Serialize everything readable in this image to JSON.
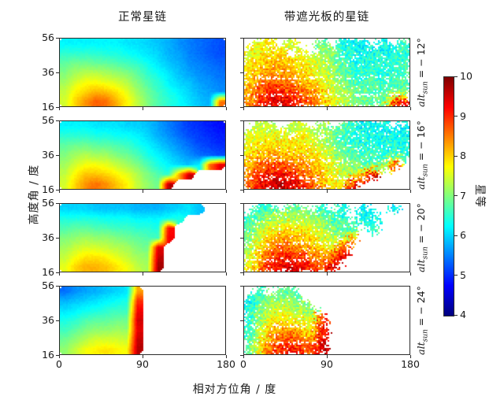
{
  "chart_data": {
    "type": "heatmap",
    "colormap": "jet",
    "value_range": [
      4,
      10
    ],
    "col_titles": [
      "正常星链",
      "带遮光板的星链"
    ],
    "row_labels": {
      "variable": "alt",
      "subscript": "sun",
      "equals": " = ",
      "values": [
        "− 12°",
        "− 16°",
        "− 20°",
        "− 24°"
      ]
    },
    "xlabel": "相对方位角 / 度",
    "ylabel": "高度角 / 度",
    "x_range": [
      0,
      180
    ],
    "x_ticks": [
      0,
      90,
      180
    ],
    "y_range": [
      16,
      56
    ],
    "y_ticks": [
      56,
      36,
      16
    ],
    "colorbar": {
      "label": "星等",
      "ticks": [
        10,
        9,
        8,
        7,
        6,
        5,
        4
      ],
      "range": [
        4,
        10
      ]
    },
    "grid_info": {
      "cols": 16,
      "rows": 7,
      "azimuth_span": [
        0,
        180
      ],
      "altitude_span_top_to_bottom": [
        56,
        16
      ],
      "units": "magnitude (星等)"
    },
    "panels": [
      {
        "id": "normal_altsun-12",
        "col": 0,
        "row": 0,
        "noise": 0.05,
        "grid": [
          [
            6.2,
            6.2,
            6.2,
            6.2,
            6.2,
            6.2,
            6.1,
            6.1,
            6.0,
            5.9,
            5.8,
            5.6,
            5.5,
            5.4,
            5.3,
            5.2
          ],
          [
            6.5,
            6.5,
            6.5,
            6.5,
            6.4,
            6.4,
            6.3,
            6.2,
            6.1,
            6.0,
            5.8,
            5.7,
            5.5,
            5.4,
            5.3,
            5.2
          ],
          [
            6.8,
            6.9,
            6.9,
            6.8,
            6.8,
            6.7,
            6.6,
            6.5,
            6.3,
            6.1,
            5.9,
            5.8,
            5.6,
            5.5,
            5.4,
            5.3
          ],
          [
            7.0,
            7.2,
            7.3,
            7.3,
            7.2,
            7.1,
            7.0,
            6.8,
            6.5,
            6.3,
            6.1,
            5.9,
            5.7,
            5.6,
            5.5,
            5.4
          ],
          [
            7.2,
            7.5,
            7.7,
            7.7,
            7.6,
            7.5,
            7.3,
            7.0,
            6.7,
            6.5,
            6.2,
            6.0,
            5.9,
            5.7,
            5.6,
            5.5
          ],
          [
            7.4,
            7.8,
            8.0,
            8.2,
            8.1,
            7.9,
            7.6,
            7.2,
            6.9,
            6.6,
            6.4,
            6.2,
            6.0,
            5.8,
            5.7,
            5.6
          ],
          [
            7.5,
            8.0,
            8.4,
            8.7,
            8.6,
            8.2,
            7.8,
            7.4,
            7.0,
            6.7,
            6.5,
            6.3,
            6.1,
            5.9,
            5.8,
            8.6
          ]
        ]
      },
      {
        "id": "visor_altsun-12",
        "col": 1,
        "row": 0,
        "noise": 0.42,
        "grid": [
          [
            null,
            7.6,
            7.8,
            null,
            7.5,
            null,
            null,
            6.9,
            null,
            6.4,
            6.3,
            6.2,
            null,
            6.3,
            null,
            6.5
          ],
          [
            7.6,
            7.8,
            8.0,
            7.9,
            null,
            7.7,
            null,
            7.2,
            7.0,
            6.6,
            6.4,
            6.3,
            6.4,
            6.3,
            6.4,
            6.5
          ],
          [
            7.8,
            8.0,
            8.1,
            8.2,
            8.0,
            7.8,
            7.6,
            7.4,
            7.0,
            6.7,
            6.5,
            6.4,
            6.5,
            6.4,
            6.5,
            6.6
          ],
          [
            7.9,
            8.2,
            8.4,
            8.3,
            8.2,
            8.0,
            7.8,
            7.6,
            7.2,
            6.9,
            6.6,
            6.5,
            6.6,
            6.5,
            6.6,
            6.7
          ],
          [
            8.0,
            8.5,
            8.7,
            8.6,
            8.5,
            8.3,
            8.0,
            7.8,
            7.4,
            7.0,
            6.8,
            6.6,
            6.7,
            6.6,
            6.7,
            6.8
          ],
          [
            8.2,
            8.8,
            9.1,
            9.1,
            8.9,
            8.7,
            8.4,
            8.0,
            7.6,
            7.2,
            7.0,
            6.8,
            6.8,
            6.7,
            6.8,
            6.9
          ],
          [
            8.4,
            9.0,
            9.3,
            9.4,
            9.2,
            9.0,
            8.6,
            8.2,
            7.8,
            7.4,
            7.1,
            6.9,
            6.9,
            6.8,
            9.0,
            9.2
          ]
        ]
      },
      {
        "id": "normal_altsun-16",
        "col": 0,
        "row": 1,
        "noise": 0.05,
        "grid": [
          [
            6.2,
            6.2,
            6.2,
            6.1,
            6.1,
            6.1,
            6.0,
            6.0,
            5.9,
            5.7,
            5.5,
            5.3,
            5.1,
            5.0,
            4.9,
            4.8
          ],
          [
            6.5,
            6.5,
            6.5,
            6.4,
            6.4,
            6.3,
            6.3,
            6.2,
            6.0,
            5.8,
            5.6,
            5.4,
            5.2,
            5.1,
            5.0,
            4.9
          ],
          [
            6.8,
            6.9,
            6.9,
            6.8,
            6.8,
            6.7,
            6.6,
            6.4,
            6.2,
            6.0,
            5.8,
            5.6,
            5.4,
            5.2,
            5.1,
            5.0
          ],
          [
            7.0,
            7.2,
            7.3,
            7.2,
            7.2,
            7.0,
            6.9,
            6.7,
            6.4,
            6.2,
            6.0,
            5.8,
            5.6,
            5.4,
            5.3,
            5.2
          ],
          [
            7.2,
            7.5,
            7.7,
            7.7,
            7.6,
            7.4,
            7.2,
            7.0,
            6.7,
            6.4,
            6.2,
            6.0,
            5.9,
            6.2,
            8.6,
            9.4
          ],
          [
            7.4,
            7.8,
            8.1,
            8.1,
            8.0,
            7.8,
            7.6,
            7.3,
            7.0,
            6.7,
            6.5,
            8.2,
            9.6,
            null,
            null,
            null
          ],
          [
            7.5,
            8.0,
            8.4,
            8.6,
            8.4,
            8.1,
            7.8,
            7.4,
            7.1,
            6.9,
            9.7,
            null,
            null,
            null,
            null,
            null
          ]
        ]
      },
      {
        "id": "visor_altsun-16",
        "col": 1,
        "row": 1,
        "noise": 0.42,
        "grid": [
          [
            null,
            7.4,
            7.2,
            null,
            7.3,
            7.5,
            null,
            7.2,
            null,
            6.8,
            6.5,
            6.3,
            6.2,
            6.4,
            null,
            6.3
          ],
          [
            7.5,
            7.6,
            7.7,
            7.6,
            null,
            7.8,
            7.4,
            null,
            7.0,
            6.6,
            6.4,
            6.3,
            6.4,
            6.3,
            6.4,
            6.2
          ],
          [
            7.7,
            7.9,
            8.0,
            7.9,
            7.8,
            7.9,
            7.7,
            7.5,
            7.1,
            6.8,
            6.6,
            6.5,
            6.5,
            6.4,
            6.5,
            6.4
          ],
          [
            7.9,
            8.2,
            8.3,
            8.2,
            8.1,
            8.0,
            7.9,
            7.7,
            7.4,
            7.0,
            6.8,
            6.6,
            6.6,
            6.5,
            6.6,
            6.5
          ],
          [
            8.1,
            8.6,
            8.8,
            8.7,
            8.6,
            8.4,
            8.1,
            7.9,
            7.6,
            7.2,
            7.0,
            6.8,
            6.8,
            6.9,
            8.8,
            null
          ],
          [
            8.4,
            9.0,
            9.2,
            9.3,
            9.1,
            8.8,
            8.5,
            8.1,
            7.8,
            7.4,
            7.2,
            8.6,
            9.5,
            null,
            null,
            null
          ],
          [
            8.6,
            9.2,
            9.5,
            9.6,
            9.4,
            9.1,
            8.7,
            8.3,
            7.9,
            7.6,
            9.6,
            null,
            null,
            null,
            null,
            null
          ]
        ]
      },
      {
        "id": "normal_altsun-20",
        "col": 0,
        "row": 2,
        "noise": 0.05,
        "grid": [
          [
            6.0,
            6.0,
            6.0,
            5.9,
            5.9,
            5.9,
            5.9,
            5.8,
            5.8,
            5.8,
            5.9,
            6.0,
            6.1,
            5.9,
            null,
            null
          ],
          [
            6.4,
            6.4,
            6.4,
            6.4,
            6.3,
            6.3,
            6.3,
            6.2,
            6.2,
            6.2,
            6.3,
            6.4,
            null,
            null,
            null,
            null
          ],
          [
            6.7,
            6.8,
            6.8,
            6.7,
            6.7,
            6.6,
            6.6,
            6.5,
            6.5,
            6.4,
            9.2,
            null,
            null,
            null,
            null,
            null
          ],
          [
            7.0,
            7.1,
            7.2,
            7.1,
            7.1,
            7.0,
            6.9,
            6.8,
            6.7,
            6.6,
            9.3,
            null,
            null,
            null,
            null,
            null
          ],
          [
            7.2,
            7.4,
            7.5,
            7.5,
            7.4,
            7.3,
            7.2,
            7.0,
            6.9,
            9.4,
            null,
            null,
            null,
            null,
            null,
            null
          ],
          [
            7.4,
            7.7,
            7.9,
            7.9,
            7.8,
            7.6,
            7.4,
            7.2,
            7.1,
            9.6,
            null,
            null,
            null,
            null,
            null,
            null
          ],
          [
            7.6,
            8.0,
            8.2,
            8.2,
            8.1,
            7.9,
            7.7,
            7.4,
            7.2,
            9.8,
            null,
            null,
            null,
            null,
            null,
            null
          ]
        ]
      },
      {
        "id": "visor_altsun-20",
        "col": 1,
        "row": 2,
        "noise": 0.42,
        "grid": [
          [
            null,
            6.5,
            6.6,
            null,
            6.8,
            6.9,
            null,
            6.6,
            null,
            6.4,
            null,
            6.3,
            null,
            null,
            6.2,
            null
          ],
          [
            6.6,
            6.9,
            7.2,
            7.3,
            7.4,
            7.3,
            7.1,
            6.9,
            6.7,
            6.5,
            null,
            6.4,
            6.3,
            null,
            null,
            null
          ],
          [
            6.8,
            7.3,
            7.6,
            7.8,
            7.9,
            7.8,
            7.6,
            7.3,
            7.0,
            6.8,
            6.6,
            null,
            6.5,
            null,
            null,
            null
          ],
          [
            7.0,
            7.6,
            8.0,
            8.2,
            8.3,
            8.1,
            7.9,
            7.6,
            7.3,
            7.0,
            8.5,
            null,
            null,
            null,
            null,
            null
          ],
          [
            7.2,
            7.9,
            8.4,
            8.6,
            8.6,
            8.4,
            8.2,
            7.9,
            7.6,
            8.8,
            null,
            null,
            null,
            null,
            null,
            null
          ],
          [
            7.4,
            8.2,
            8.8,
            9.0,
            9.1,
            8.9,
            8.6,
            8.3,
            8.6,
            9.3,
            null,
            null,
            null,
            null,
            null,
            null
          ],
          [
            7.6,
            8.5,
            9.1,
            9.4,
            9.5,
            9.3,
            9.0,
            8.7,
            9.4,
            null,
            null,
            null,
            null,
            null,
            null,
            null
          ]
        ]
      },
      {
        "id": "normal_altsun-24",
        "col": 0,
        "row": 3,
        "noise": 0.05,
        "grid": [
          [
            5.4,
            5.6,
            5.7,
            5.8,
            5.9,
            6.0,
            6.1,
            8.3,
            null,
            null,
            null,
            null,
            null,
            null,
            null,
            null
          ],
          [
            5.8,
            5.9,
            6.0,
            6.1,
            6.2,
            6.3,
            6.4,
            9.0,
            null,
            null,
            null,
            null,
            null,
            null,
            null,
            null
          ],
          [
            6.1,
            6.2,
            6.3,
            6.4,
            6.5,
            6.6,
            6.6,
            9.3,
            null,
            null,
            null,
            null,
            null,
            null,
            null,
            null
          ],
          [
            6.4,
            6.5,
            6.7,
            6.8,
            6.8,
            6.9,
            6.9,
            9.5,
            null,
            null,
            null,
            null,
            null,
            null,
            null,
            null
          ],
          [
            6.6,
            6.8,
            7.0,
            7.1,
            7.1,
            7.2,
            7.1,
            9.4,
            null,
            null,
            null,
            null,
            null,
            null,
            null,
            null
          ],
          [
            6.9,
            7.1,
            7.3,
            7.5,
            7.5,
            7.5,
            7.4,
            9.6,
            null,
            null,
            null,
            null,
            null,
            null,
            null,
            null
          ],
          [
            7.1,
            7.4,
            7.7,
            7.8,
            7.9,
            7.8,
            7.7,
            9.7,
            null,
            null,
            null,
            null,
            null,
            null,
            null,
            null
          ]
        ]
      },
      {
        "id": "visor_altsun-24",
        "col": 1,
        "row": 3,
        "noise": 0.42,
        "grid": [
          [
            null,
            6.6,
            null,
            6.8,
            6.7,
            null,
            null,
            null,
            null,
            null,
            null,
            null,
            null,
            null,
            null,
            null
          ],
          [
            6.3,
            6.8,
            7.1,
            7.2,
            7.1,
            6.9,
            null,
            null,
            null,
            null,
            null,
            null,
            null,
            null,
            null,
            null
          ],
          [
            6.4,
            7.0,
            7.4,
            7.6,
            7.5,
            7.3,
            7.0,
            null,
            null,
            null,
            null,
            null,
            null,
            null,
            null,
            null
          ],
          [
            6.5,
            7.2,
            7.7,
            7.9,
            7.9,
            7.7,
            7.4,
            9.0,
            null,
            null,
            null,
            null,
            null,
            null,
            null,
            null
          ],
          [
            6.6,
            7.4,
            8.0,
            8.3,
            8.3,
            8.1,
            7.8,
            9.2,
            null,
            null,
            null,
            null,
            null,
            null,
            null,
            null
          ],
          [
            6.7,
            7.6,
            8.3,
            8.7,
            8.8,
            8.6,
            8.3,
            9.4,
            null,
            null,
            null,
            null,
            null,
            null,
            null,
            null
          ],
          [
            6.8,
            7.8,
            8.6,
            9.1,
            9.2,
            9.0,
            8.7,
            9.6,
            null,
            null,
            null,
            null,
            null,
            null,
            null,
            null
          ]
        ]
      }
    ]
  }
}
